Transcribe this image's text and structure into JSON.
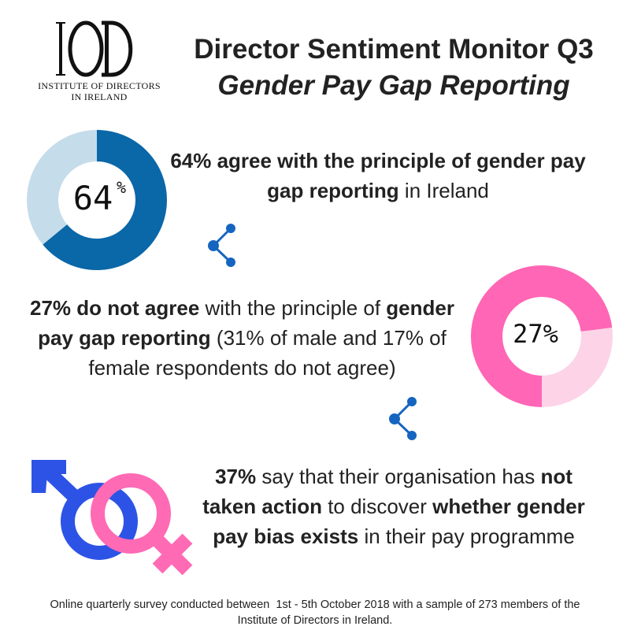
{
  "logo": {
    "monogram": "IOD",
    "org_line1": "INSTITUTE OF DIRECTORS",
    "org_line2": "IN IRELAND"
  },
  "header": {
    "title": "Director Sentiment Monitor Q3",
    "subtitle": "Gender Pay Gap Reporting"
  },
  "colors": {
    "blue_dark": "#0a67a8",
    "blue_light": "#c5dcea",
    "pink_dark": "#ff66b5",
    "pink_light": "#fdd3e8",
    "share_icon": "#1565c0",
    "male_symbol": "#2d53e6",
    "female_symbol": "#ff6ab5"
  },
  "stats": {
    "agree": {
      "value": 64,
      "donut_number": "64",
      "donut_suffix": "%",
      "bold1": "64% agree with the principle of gender pay gap reporting",
      "normal1": " in Ireland"
    },
    "disagree": {
      "value": 27,
      "donut_label": "27%",
      "bold1": "27% do not agree",
      "normal1": " with the principle of ",
      "bold2": "gender pay gap reporting",
      "normal2": " (31% of male and 17% of female respondents do not agree)"
    },
    "no_action": {
      "bold1": "37%",
      "normal1": " say that their organisation has ",
      "bold2": "not taken action",
      "normal2": " to discover ",
      "bold3": "whether gender pay bias exists",
      "normal3": " in their pay programme"
    }
  },
  "icons": {
    "share": "share-icon",
    "gender": "gender-symbols-icon"
  },
  "footer": {
    "line1": "Online quarterly survey conducted between  1st - 5th October 2018 with a sample of 273 members of the",
    "line2": "Institute of Directors in Ireland."
  }
}
